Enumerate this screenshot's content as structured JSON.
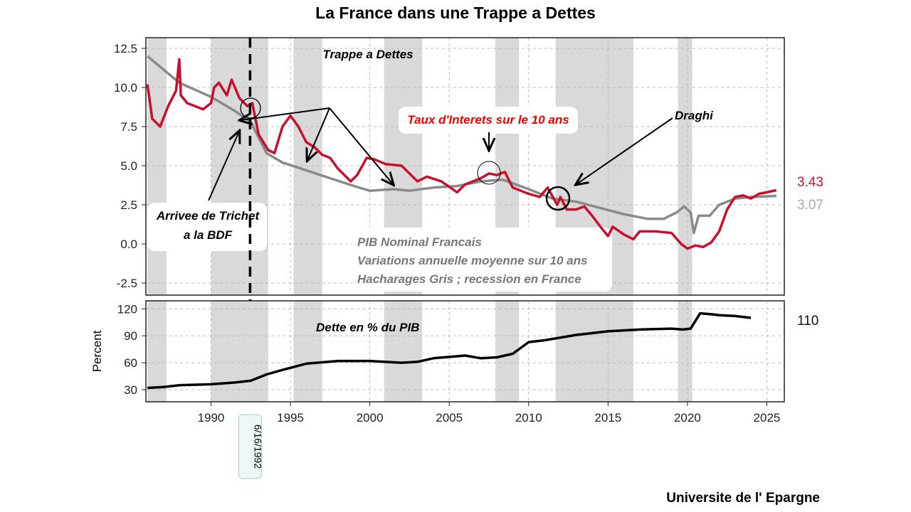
{
  "chart_data": [
    {
      "type": "line",
      "title": "La France dans une Trappe a Dettes",
      "panel": "top",
      "xlim": [
        1985.9,
        2026.1
      ],
      "ylim": [
        -3.2,
        13.2
      ],
      "yticks": [
        "12.5",
        "10.0",
        "7.5",
        "5.0",
        "2.5",
        "0.0",
        "-2.5"
      ],
      "ytick_values": [
        12.5,
        10,
        7.5,
        5,
        2.5,
        0,
        -2.5
      ],
      "recessions": [
        [
          1986.0,
          1987.2
        ],
        [
          1990.0,
          1993.6
        ],
        [
          1995.2,
          1997.0
        ],
        [
          2000.9,
          2003.3
        ],
        [
          2007.9,
          2009.4
        ],
        [
          2011.7,
          2016.6
        ],
        [
          2019.4,
          2020.3
        ]
      ],
      "series": [
        {
          "name": "Taux d'Interets sur le 10 ans",
          "color": "#c8102e",
          "last_label": "3.43",
          "x": [
            1986.0,
            1986.3,
            1986.8,
            1987.3,
            1987.8,
            1988.0,
            1988.1,
            1988.5,
            1989,
            1989.5,
            1990,
            1990.2,
            1990.5,
            1991,
            1991.3,
            1991.8,
            1992.3,
            1992.6,
            1993,
            1993.6,
            1994,
            1994.5,
            1995,
            1995.5,
            1996,
            1996.5,
            1997,
            1997.5,
            1998,
            1998.8,
            1999.2,
            1999.8,
            2000.3,
            2001,
            2002,
            2003,
            2003.6,
            2004.5,
            2005.5,
            2006,
            2007,
            2007.5,
            2008,
            2008.5,
            2009,
            2010,
            2010.7,
            2011.2,
            2011.8,
            2012,
            2012.4,
            2013,
            2013.5,
            2014,
            2014.6,
            2015,
            2015.3,
            2016,
            2016.6,
            2017,
            2018,
            2019,
            2019.6,
            2020,
            2020.5,
            2021,
            2021.5,
            2022,
            2022.5,
            2023,
            2023.5,
            2024,
            2024.5,
            2025,
            2025.6
          ],
          "y": [
            10.2,
            8.0,
            7.5,
            8.8,
            9.8,
            11.8,
            9.5,
            9.0,
            8.8,
            8.6,
            9.0,
            10.0,
            10.3,
            9.5,
            10.5,
            9.3,
            8.8,
            9.0,
            7.0,
            6.0,
            5.8,
            7.5,
            8.2,
            7.5,
            6.5,
            6.2,
            5.7,
            5.5,
            4.8,
            4.0,
            4.4,
            5.5,
            5.4,
            5.1,
            5.0,
            4.0,
            4.3,
            4.0,
            3.3,
            3.8,
            4.2,
            4.5,
            4.4,
            4.6,
            3.6,
            3.2,
            3.0,
            3.6,
            2.5,
            3.0,
            2.2,
            2.2,
            2.4,
            1.8,
            1.0,
            0.5,
            1.1,
            0.6,
            0.3,
            0.8,
            0.8,
            0.7,
            0.0,
            -0.3,
            -0.1,
            -0.2,
            0.1,
            0.8,
            2.2,
            3.0,
            3.1,
            2.9,
            3.2,
            3.3,
            3.43
          ]
        },
        {
          "name": "PIB Nominal Francais",
          "color": "#8a8a8a",
          "last_label": "3.07",
          "x": [
            1986,
            1988,
            1990,
            1991.5,
            1992.5,
            1993.5,
            1994.5,
            1996,
            1997.5,
            1999,
            2000,
            2001.5,
            2002.5,
            2004,
            2005.5,
            2007,
            2008.4,
            2010,
            2011.5,
            2013,
            2014.5,
            2016,
            2017.5,
            2018.5,
            2019.3,
            2019.8,
            2020.2,
            2020.4,
            2020.7,
            2021.4,
            2022,
            2023,
            2024,
            2025.6
          ],
          "y": [
            12.0,
            10.3,
            9.4,
            8.5,
            7.8,
            5.8,
            5.2,
            4.7,
            4.2,
            3.7,
            3.4,
            3.5,
            3.4,
            3.6,
            3.7,
            4.0,
            4.1,
            3.5,
            2.9,
            2.7,
            2.3,
            1.9,
            1.6,
            1.6,
            2.0,
            2.4,
            2.0,
            0.7,
            1.8,
            1.8,
            2.5,
            2.9,
            3.0,
            3.07
          ]
        }
      ],
      "annotations": {
        "trappe": "Trappe a Dettes",
        "taux": "Taux d'Interets sur le 10 ans",
        "draghi": "Draghi",
        "trichet_1": "Arrivee de Trichet",
        "trichet_2": "a la BDF",
        "pib_1": "PIB Nominal Francais",
        "pib_2": "Variations annuelle moyenne sur 10 ans",
        "pib_3": "Hacharages Gris ; recession en France"
      },
      "vline": {
        "x": 1992.46,
        "label": "6/16/1992"
      }
    },
    {
      "type": "line",
      "panel": "bottom",
      "ylabel": "Percent",
      "xlim": [
        1985.9,
        2026.1
      ],
      "ylim": [
        20,
        128
      ],
      "yticks": [
        "120",
        "90",
        "60",
        "30"
      ],
      "ytick_values": [
        120,
        90,
        60,
        30
      ],
      "xticks": [
        "1990",
        "1995",
        "2000",
        "2005",
        "2010",
        "2015",
        "2020",
        "2025"
      ],
      "xtick_values": [
        1990,
        1995,
        2000,
        2005,
        2010,
        2015,
        2020,
        2025
      ],
      "annotation": "Dette en % du PIB",
      "series": [
        {
          "name": "Dette en % du PIB",
          "color": "#000000",
          "last_label": "110",
          "x": [
            1986,
            1987,
            1988,
            1990,
            1991.5,
            1992.5,
            1993.5,
            1994.5,
            1996,
            1998,
            2000,
            2002,
            2003,
            2004,
            2006,
            2007,
            2008,
            2009,
            2010,
            2011,
            2013,
            2015,
            2017,
            2019,
            2019.7,
            2020.2,
            2020.8,
            2021.5,
            2022,
            2023,
            2024
          ],
          "y": [
            32,
            33,
            35,
            36,
            38,
            40,
            47,
            52,
            59,
            62,
            62,
            60,
            61,
            65,
            68,
            65,
            66,
            70,
            83,
            85,
            91,
            95,
            97,
            98,
            97,
            98,
            115,
            114,
            113,
            112,
            110
          ]
        }
      ]
    }
  ],
  "source": "Universite de l' Epargne"
}
